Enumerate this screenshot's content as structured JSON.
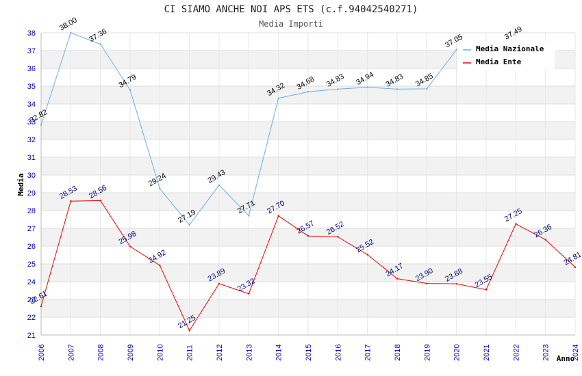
{
  "chart_data": {
    "type": "line",
    "title": "CI SIAMO ANCHE NOI APS ETS (c.f.94042540271)",
    "subtitle": "Media Importi",
    "xlabel": "Anno",
    "ylabel": "Media",
    "ylim": [
      21,
      38
    ],
    "x": [
      "2006",
      "2007",
      "2008",
      "2009",
      "2010",
      "2011",
      "2012",
      "2013",
      "2014",
      "2015",
      "2016",
      "2017",
      "2018",
      "2019",
      "2020",
      "2021",
      "2022",
      "2023",
      "2024"
    ],
    "yticks": [
      "21",
      "22",
      "23",
      "24",
      "25",
      "26",
      "27",
      "28",
      "29",
      "30",
      "31",
      "32",
      "33",
      "34",
      "35",
      "36",
      "37",
      "38"
    ],
    "series": [
      {
        "name": "Media Nazionale",
        "color": "#6aaee8",
        "values": [
          32.82,
          38.0,
          37.36,
          34.79,
          29.24,
          27.19,
          29.43,
          27.71,
          34.32,
          34.68,
          34.83,
          34.94,
          34.83,
          34.85,
          37.05,
          null,
          37.49,
          null,
          null
        ],
        "labels": [
          "32.82",
          "38.00",
          "37.36",
          "34.79",
          "29.24",
          "27.19",
          "29.43",
          "27.71",
          "34.32",
          "34.68",
          "34.83",
          "34.94",
          "34.83",
          "34.85",
          "37.05",
          "",
          "37.49",
          "",
          ""
        ]
      },
      {
        "name": "Media Ente",
        "color": "#ee0000",
        "values": [
          22.61,
          28.53,
          28.56,
          25.98,
          24.92,
          21.25,
          23.89,
          23.32,
          27.7,
          26.57,
          26.52,
          25.52,
          24.17,
          23.9,
          23.88,
          23.55,
          27.25,
          26.36,
          24.81
        ],
        "labels": [
          "22.61",
          "28.53",
          "28.56",
          "25.98",
          "24.92",
          "21.25",
          "23.89",
          "23.32",
          "27.70",
          "26.57",
          "26.52",
          "25.52",
          "24.17",
          "23.90",
          "23.88",
          "23.55",
          "27.25",
          "26.36",
          "24.81"
        ]
      }
    ],
    "legend": {
      "placement": "top-right"
    },
    "grid": true
  }
}
